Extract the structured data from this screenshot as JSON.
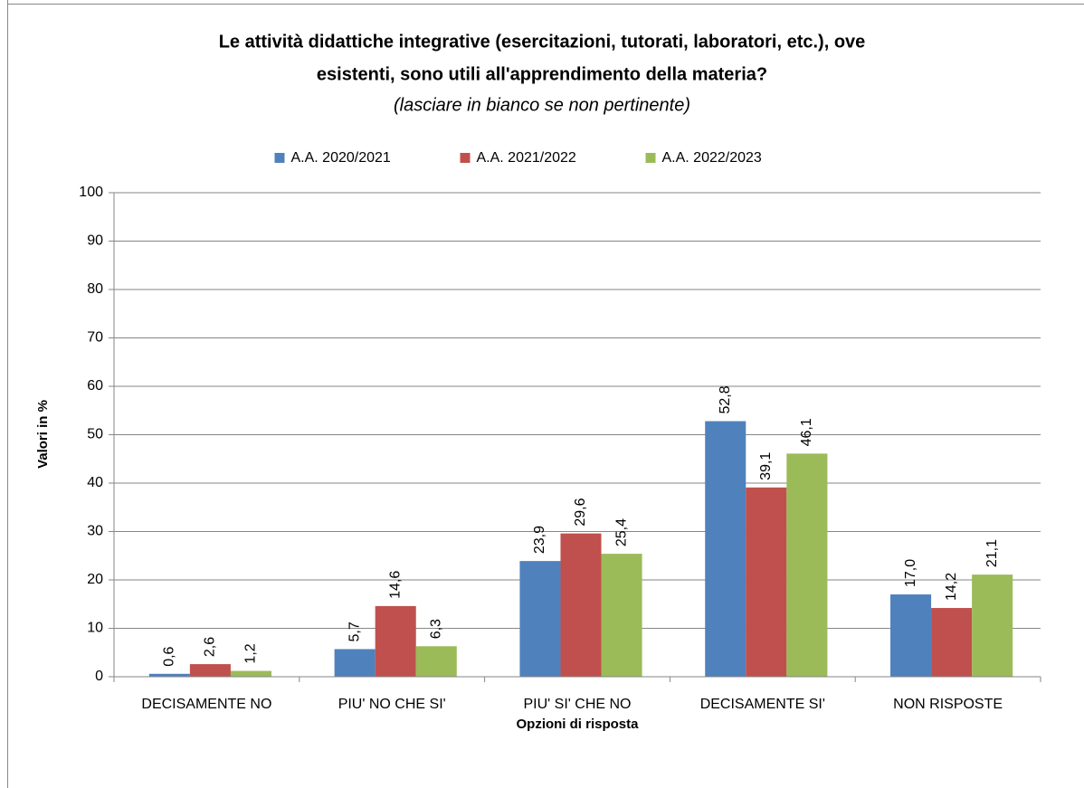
{
  "chart_data": {
    "type": "bar",
    "title": [
      "Le attività didattiche integrative (esercitazioni, tutorati, laboratori, etc.), ove",
      "esistenti, sono utili all'apprendimento della materia?"
    ],
    "subtitle": "(lasciare in bianco se non pertinente)",
    "x_label": "Opzioni di risposta",
    "y_label": "Valori in %",
    "categories": [
      "DECISAMENTE NO",
      "PIU' NO CHE SI'",
      "PIU' SI' CHE NO",
      "DECISAMENTE SI'",
      "NON RISPOSTE"
    ],
    "series": [
      {
        "name": "A.A. 2020/2021",
        "color": "#4f81bd",
        "values": [
          0.6,
          5.7,
          23.9,
          52.8,
          17.0
        ],
        "value_labels": [
          "0,6",
          "5,7",
          "23,9",
          "52,8",
          "17,0"
        ]
      },
      {
        "name": "A.A. 2021/2022",
        "color": "#c0504d",
        "values": [
          2.6,
          14.6,
          29.6,
          39.1,
          14.2
        ],
        "value_labels": [
          "2,6",
          "14,6",
          "29,6",
          "39,1",
          "14,2"
        ]
      },
      {
        "name": "A.A. 2022/2023",
        "color": "#9bbb59",
        "values": [
          1.2,
          6.3,
          25.4,
          46.1,
          21.1
        ],
        "value_labels": [
          "1,2",
          "6,3",
          "25,4",
          "46,1",
          "21,1"
        ]
      }
    ],
    "ylim": [
      0,
      100
    ],
    "yticks": [
      0,
      10,
      20,
      30,
      40,
      50,
      60,
      70,
      80,
      90,
      100
    ],
    "grid": true,
    "legend": "top"
  }
}
